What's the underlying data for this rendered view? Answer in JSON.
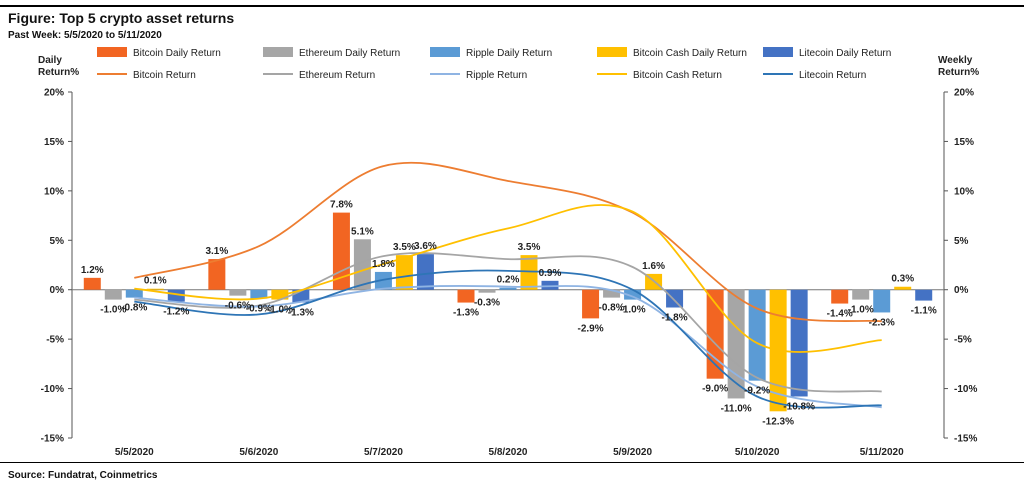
{
  "header": {
    "title": "Figure: Top 5 crypto asset returns",
    "subtitle": "Past Week: 5/5/2020 to 5/11/2020"
  },
  "footer": {
    "source": "Source: Fundatrat, Coinmetrics"
  },
  "chart_data": {
    "type": "bar",
    "title": "Figure: Top 5 crypto asset returns",
    "subtitle": "Past Week: 5/5/2020 to 5/11/2020",
    "ylabel_left": "Daily Return%",
    "ylabel_right": "Weekly Return%",
    "ylim": [
      -15,
      20
    ],
    "yticks": [
      20,
      15,
      10,
      5,
      0,
      -5,
      -10,
      -15
    ],
    "ytick_labels": [
      "20%",
      "15%",
      "10%",
      "5%",
      "0%",
      "-5%",
      "-10%",
      "-15%"
    ],
    "grid": false,
    "legend_position": "top",
    "categories": [
      "5/5/2020",
      "5/6/2020",
      "5/7/2020",
      "5/8/2020",
      "5/9/2020",
      "5/10/2020",
      "5/11/2020"
    ],
    "bar_series": [
      {
        "name": "Bitcoin Daily Return",
        "color": "#f26522",
        "values": [
          1.2,
          3.1,
          7.8,
          -1.3,
          -2.9,
          -9.0,
          -1.4
        ],
        "labels": [
          "1.2%",
          "3.1%",
          "7.8%",
          "-1.3%",
          "-2.9%",
          "-9.0%",
          "-1.4%"
        ]
      },
      {
        "name": "Ethereum Daily Return",
        "color": "#a6a6a6",
        "values": [
          -1.0,
          -0.6,
          5.1,
          -0.3,
          -0.8,
          -11.0,
          -1.0
        ],
        "labels": [
          "-1.0%",
          "-0.6%",
          "5.1%",
          "-0.3%",
          "-0.8%",
          "-11.0%",
          "-1.0%"
        ]
      },
      {
        "name": "Ripple Daily Return",
        "color": "#5b9bd5",
        "values": [
          -0.8,
          -0.9,
          1.8,
          0.2,
          -1.0,
          -9.2,
          -2.3
        ],
        "labels": [
          "-0.8%",
          "-0.9%",
          "1.8%",
          "0.2%",
          "-1.0%",
          "-9.2%",
          "-2.3%"
        ]
      },
      {
        "name": "Bitcoin Cash Daily Return",
        "color": "#ffc000",
        "values": [
          0.1,
          -1.0,
          3.5,
          3.5,
          1.6,
          -12.3,
          0.3
        ],
        "labels": [
          "0.1%",
          "-1.0%",
          "3.5%",
          "3.5%",
          "1.6%",
          "-12.3%",
          "0.3%"
        ]
      },
      {
        "name": "Litecoin Daily Return",
        "color": "#4472c4",
        "values": [
          -1.2,
          -1.3,
          3.6,
          0.9,
          -1.8,
          -10.8,
          -1.1
        ],
        "labels": [
          "-1.2%",
          "-1.3%",
          "3.6%",
          "0.9%",
          "-1.8%",
          "-10.8%",
          "-1.1%"
        ]
      }
    ],
    "line_series": [
      {
        "name": "Bitcoin Return",
        "color": "#ed7d31",
        "values": [
          1.2,
          4.4,
          12.5,
          11.0,
          7.8,
          -1.9,
          -3.2
        ]
      },
      {
        "name": "Ethereum Return",
        "color": "#a5a5a5",
        "values": [
          -1.0,
          -1.6,
          3.4,
          3.1,
          2.3,
          -8.9,
          -10.3
        ]
      },
      {
        "name": "Ripple Return",
        "color": "#8fb4e3",
        "values": [
          -0.8,
          -1.7,
          0.1,
          0.3,
          -0.7,
          -9.8,
          -11.9
        ]
      },
      {
        "name": "Bitcoin Cash Return",
        "color": "#ffc000",
        "values": [
          0.1,
          -0.9,
          2.6,
          6.2,
          7.9,
          -5.4,
          -5.1
        ]
      },
      {
        "name": "Litecoin Return",
        "color": "#2e75b6",
        "values": [
          -1.2,
          -2.5,
          1.0,
          1.9,
          -0.0,
          -10.8,
          -11.7
        ]
      }
    ]
  }
}
